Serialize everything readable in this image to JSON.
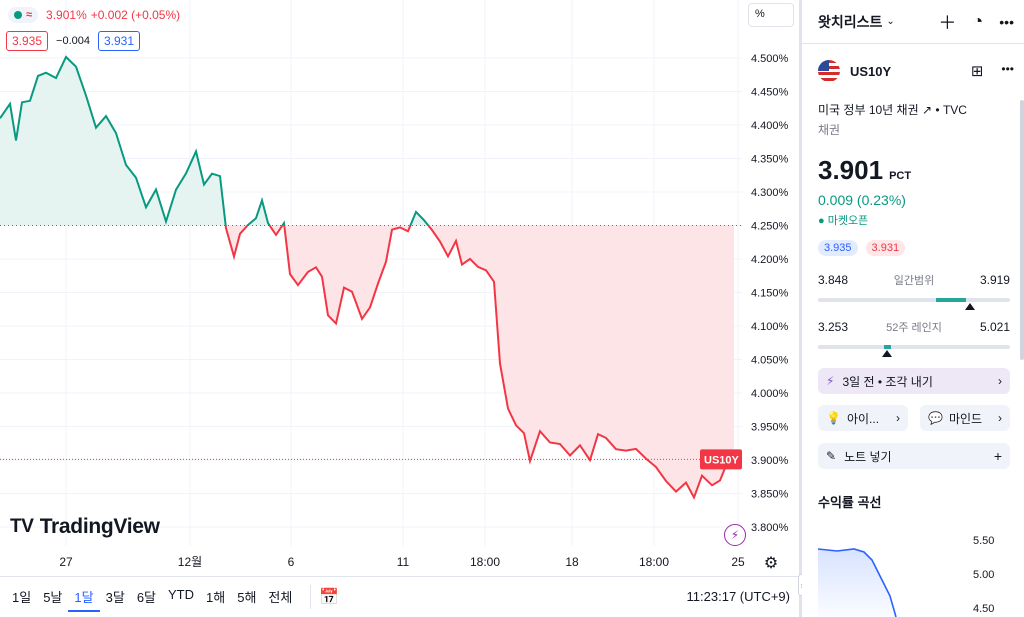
{
  "chart": {
    "legend": {
      "price": "3.901%",
      "change": "+0.002 (+0.05%)"
    },
    "bid": "3.935",
    "spread": "−0.004",
    "ask": "3.931",
    "scale_button": "%",
    "price_axis": [
      "4.500%",
      "4.450%",
      "4.400%",
      "4.350%",
      "4.300%",
      "4.250%",
      "4.200%",
      "4.150%",
      "4.100%",
      "4.050%",
      "4.000%",
      "3.950%",
      "3.900%",
      "3.850%",
      "3.800%"
    ],
    "time_axis": [
      "27",
      "12월",
      "6",
      "11",
      "18:00",
      "18",
      "18:00",
      "25"
    ],
    "symbol_tag": "US10Y",
    "baseline": 4.25,
    "logo": "TradingView",
    "colors": {
      "up": "#089981",
      "down": "#f23645",
      "up_fill": "#e6f4f1",
      "down_fill": "#fde4e6"
    }
  },
  "bottom_bar": {
    "ranges": [
      "1일",
      "5날",
      "1달",
      "3달",
      "6달",
      "YTD",
      "1해",
      "5해",
      "전체"
    ],
    "active_range": "1달",
    "clock": "11:23:17 (UTC+9)"
  },
  "side": {
    "watchlist_title": "왓치리스트",
    "symbol": "US10Y",
    "description": "미국 정부 10년 채권",
    "exchange": "TVC",
    "category": "채권",
    "price": "3.901",
    "unit": "PCT",
    "change": "0.009 (0.23%)",
    "market_status": "● 마켓오픈",
    "bid": "3.935",
    "ask": "3.931",
    "day_range": {
      "low": "3.848",
      "label": "일간범위",
      "high": "3.919",
      "position": 0.77
    },
    "week52_range": {
      "low": "3.253",
      "label": "52주 레인지",
      "high": "5.021",
      "position": 0.36
    },
    "idea_button": "3일 전 • 조각 내기",
    "ideas_button": "아이...",
    "minds_button": "마인드",
    "note_button": "노트 넣기",
    "yield_curve_title": "수익률 곡선",
    "yield_curve_axis": [
      "5.50",
      "5.00",
      "4.50"
    ],
    "icons": [
      "chevron-down-icon",
      "plus-icon",
      "pie-chart-icon",
      "more-icon",
      "grid-icon",
      "external-link-icon",
      "bolt-icon",
      "lightbulb-icon",
      "chat-icon",
      "pencil-icon"
    ]
  }
}
